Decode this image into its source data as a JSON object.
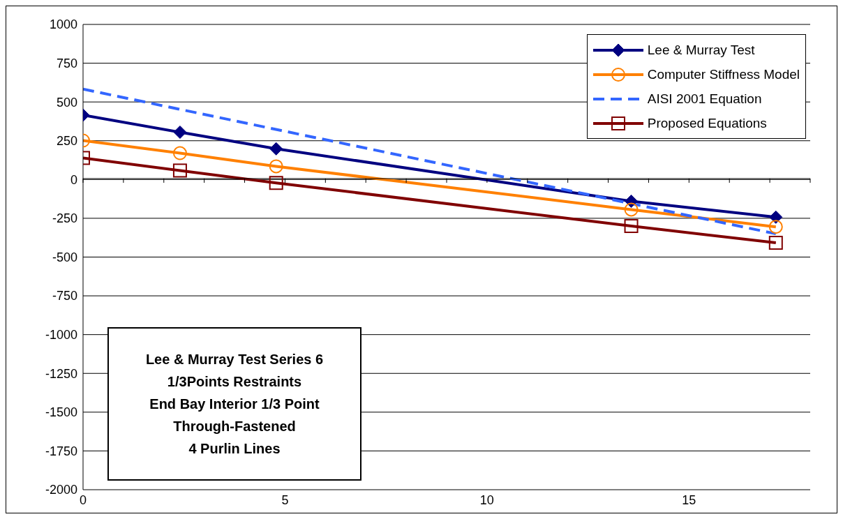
{
  "chart_data": {
    "type": "line",
    "xlim": [
      0,
      18
    ],
    "xticks": [
      0,
      {
        "value": 1,
        "label": null
      },
      {
        "value": 2,
        "label": null
      },
      {
        "value": 3,
        "label": null
      },
      {
        "value": 4,
        "label": null
      },
      5,
      {
        "value": 6,
        "label": null
      },
      {
        "value": 7,
        "label": null
      },
      {
        "value": 8,
        "label": null
      },
      {
        "value": 9,
        "label": null
      },
      10,
      {
        "value": 11,
        "label": null
      },
      {
        "value": 12,
        "label": null
      },
      {
        "value": 13,
        "label": null
      },
      {
        "value": 14,
        "label": null
      },
      15,
      {
        "value": 16,
        "label": null
      },
      {
        "value": 17,
        "label": null
      },
      {
        "value": 18,
        "label": null
      }
    ],
    "ylim": [
      -2000,
      1000
    ],
    "yticks": [
      -2000,
      -1750,
      -1500,
      -1250,
      -1000,
      -750,
      -500,
      -250,
      0,
      250,
      500,
      750,
      1000
    ],
    "grid": "y",
    "legend": "top right",
    "series": [
      {
        "name": "Lee & Murray Test",
        "color": "#000080",
        "marker": "diamond",
        "line_style": "solid",
        "x": [
          0,
          2.4,
          4.78,
          13.57,
          17.15
        ],
        "values": [
          415,
          305,
          198,
          -140,
          -243
        ]
      },
      {
        "name": "Computer Stiffness Model",
        "color": "#ff8000",
        "marker": "circle",
        "line_style": "solid",
        "x": [
          0,
          2.4,
          4.78,
          13.57,
          17.15
        ],
        "values": [
          251,
          170,
          85,
          -194,
          -305
        ]
      },
      {
        "name": "AISI 2001 Equation",
        "color": "#3366ff",
        "marker": "none",
        "line_style": "dashed",
        "x": [
          0,
          17.15
        ],
        "values": [
          583,
          -350
        ]
      },
      {
        "name": "Proposed Equations",
        "color": "#800000",
        "marker": "square",
        "line_style": "solid",
        "x": [
          0,
          2.4,
          4.78,
          13.57,
          17.15
        ],
        "values": [
          139,
          58,
          -22,
          -300,
          -408
        ]
      }
    ],
    "annotations": [
      "Lee & Murray Test Series 6",
      "1/3Points Restraints",
      "End Bay Interior 1/3 Point",
      "Through-Fastened",
      "4 Purlin Lines"
    ]
  }
}
